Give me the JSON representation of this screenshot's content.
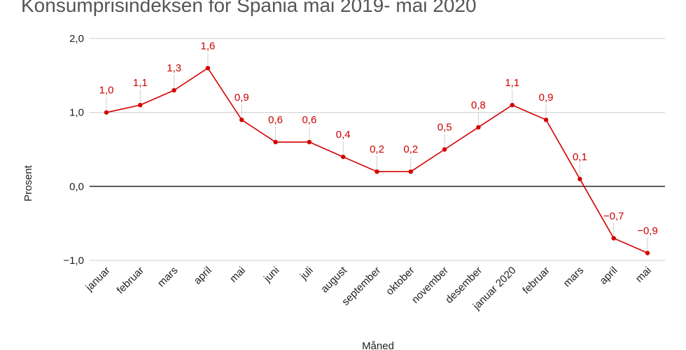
{
  "chart_data": {
    "type": "line",
    "title": "Konsumprisindeksen for Spania mai 2019- mai 2020",
    "xlabel": "Måned",
    "ylabel": "Prosent",
    "ylim": [
      -1.0,
      2.0
    ],
    "yticks": [
      2.0,
      1.0,
      0.0,
      -1.0
    ],
    "ytick_labels": [
      "2,0",
      "1,0",
      "0,0",
      "−1,0"
    ],
    "grid": true,
    "categories": [
      "januar",
      "februar",
      "mars",
      "april",
      "mai",
      "juni",
      "juli",
      "august",
      "september",
      "oktober",
      "november",
      "desember",
      "januar 2020",
      "februar",
      "mars",
      "april",
      "mai"
    ],
    "series": [
      {
        "values": [
          1.0,
          1.1,
          1.3,
          1.6,
          0.9,
          0.6,
          0.6,
          0.4,
          0.2,
          0.2,
          0.5,
          0.8,
          1.1,
          0.9,
          0.1,
          -0.7,
          -0.9
        ],
        "labels": [
          "1,0",
          "1,1",
          "1,3",
          "1,6",
          "0,9",
          "0,6",
          "0,6",
          "0,4",
          "0,2",
          "0,2",
          "0,5",
          "0,8",
          "1,1",
          "0,9",
          "0,1",
          "−0,7",
          "−0,9"
        ],
        "color": "#d40000"
      }
    ]
  }
}
